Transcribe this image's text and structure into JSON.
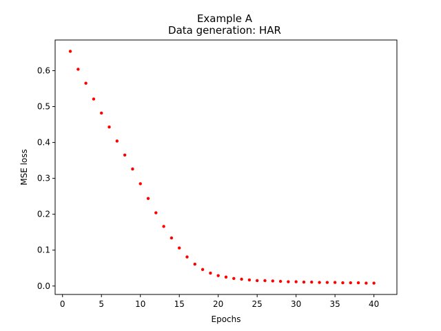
{
  "chart_data": {
    "type": "scatter",
    "title": "Example A",
    "subtitle": "Data generation: HAR",
    "xlabel": "Epochs",
    "ylabel": "MSE loss",
    "xlim": [
      -0.95,
      42.95
    ],
    "ylim": [
      -0.0235,
      0.6855
    ],
    "xticks": [
      0,
      5,
      10,
      15,
      20,
      25,
      30,
      35,
      40
    ],
    "yticks": [
      0.0,
      0.1,
      0.2,
      0.3,
      0.4,
      0.5,
      0.6
    ],
    "ytick_labels": [
      "0.0",
      "0.1",
      "0.2",
      "0.3",
      "0.4",
      "0.5",
      "0.6"
    ],
    "grid": false,
    "series": [
      {
        "color": "#ff0000",
        "x": [
          1,
          2,
          3,
          4,
          5,
          6,
          7,
          8,
          9,
          10,
          11,
          12,
          13,
          14,
          15,
          16,
          17,
          18,
          19,
          20,
          21,
          22,
          23,
          24,
          25,
          26,
          27,
          28,
          29,
          30,
          31,
          32,
          33,
          34,
          35,
          36,
          37,
          38,
          39,
          40
        ],
        "y": [
          0.654,
          0.604,
          0.565,
          0.521,
          0.482,
          0.443,
          0.404,
          0.365,
          0.326,
          0.285,
          0.244,
          0.204,
          0.166,
          0.134,
          0.106,
          0.081,
          0.061,
          0.046,
          0.036,
          0.029,
          0.025,
          0.021,
          0.019,
          0.017,
          0.015,
          0.015,
          0.014,
          0.013,
          0.012,
          0.012,
          0.011,
          0.011,
          0.01,
          0.01,
          0.01,
          0.009,
          0.009,
          0.009,
          0.008,
          0.008
        ]
      }
    ]
  }
}
